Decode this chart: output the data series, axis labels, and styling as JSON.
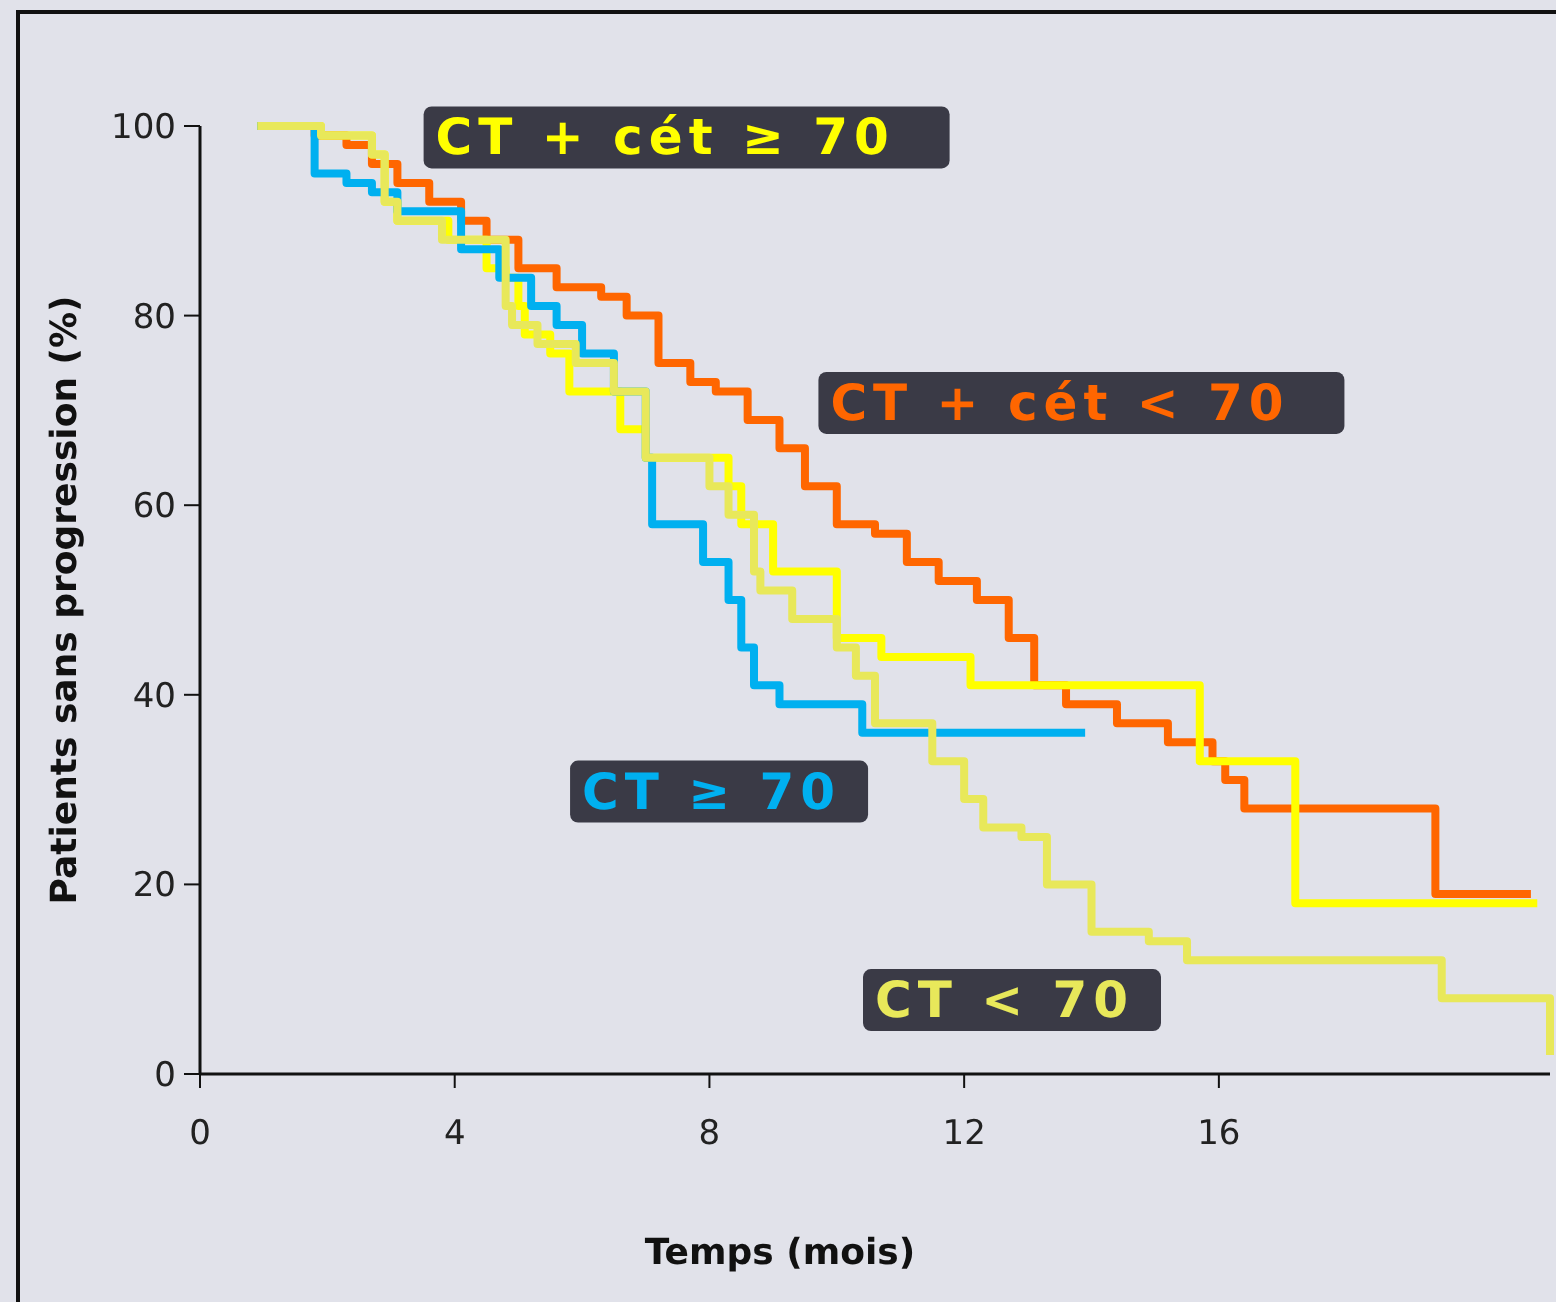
{
  "chart_data": {
    "type": "step",
    "xlabel": "Temps (mois)",
    "ylabel": "Patients sans progression (%)",
    "xlim": [
      0,
      21.2
    ],
    "ylim": [
      0,
      100
    ],
    "xticks": [
      0,
      4,
      8,
      12,
      16
    ],
    "yticks": [
      0,
      20,
      40,
      60,
      80,
      100
    ],
    "grid": false,
    "legend": false,
    "marker": "none",
    "line_style": "solid",
    "series": [
      {
        "name": "CT + cét < 70",
        "color": "#ff6600",
        "x": [
          0.9,
          1.8,
          2.3,
          2.7,
          3.1,
          3.6,
          4.1,
          4.5,
          5.0,
          5.6,
          6.3,
          6.7,
          7.2,
          7.7,
          8.1,
          8.6,
          9.1,
          9.5,
          10.0,
          10.6,
          11.1,
          11.6,
          12.2,
          12.7,
          13.1,
          13.6,
          14.4,
          15.2,
          15.9,
          16.1,
          16.4,
          19.4,
          20.9
        ],
        "values": [
          100,
          99,
          98,
          96,
          94,
          92,
          90,
          88,
          85,
          83,
          82,
          80,
          75,
          73,
          72,
          69,
          66,
          62,
          58,
          57,
          54,
          52,
          50,
          46,
          41,
          39,
          37,
          35,
          33,
          31,
          28,
          19,
          19
        ]
      },
      {
        "name": "CT + cét ≥ 70",
        "color": "#ffff00",
        "x": [
          0.9,
          1.9,
          2.7,
          2.9,
          3.1,
          3.9,
          4.5,
          4.8,
          5.0,
          5.1,
          5.5,
          5.8,
          6.6,
          7.0,
          8.3,
          8.5,
          9.0,
          10.0,
          10.7,
          12.1,
          15.7,
          17.2,
          21.0
        ],
        "values": [
          100,
          99,
          97,
          92,
          90,
          88,
          85,
          84,
          81,
          78,
          76,
          72,
          68,
          65,
          62,
          58,
          53,
          46,
          44,
          41,
          33,
          18,
          18
        ]
      },
      {
        "name": "CT ≥ 70",
        "color": "#00b0f0",
        "x": [
          0.9,
          1.8,
          2.3,
          2.7,
          3.1,
          4.1,
          4.7,
          5.2,
          5.6,
          6.0,
          6.5,
          7.0,
          7.1,
          7.9,
          8.3,
          8.5,
          8.7,
          9.1,
          10.4,
          13.9
        ],
        "values": [
          100,
          95,
          94,
          93,
          91,
          87,
          84,
          81,
          79,
          76,
          72,
          65,
          58,
          54,
          50,
          45,
          41,
          39,
          36,
          36
        ]
      },
      {
        "name": "CT < 70",
        "color": "#e8e85a",
        "x": [
          0.9,
          1.9,
          2.7,
          2.9,
          3.1,
          3.8,
          4.8,
          4.9,
          5.3,
          5.9,
          6.5,
          7.0,
          8.0,
          8.3,
          8.7,
          8.8,
          9.3,
          10.0,
          10.3,
          10.6,
          11.5,
          12.0,
          12.3,
          12.9,
          13.3,
          14.0,
          14.9,
          15.5,
          19.5,
          21.2
        ],
        "values": [
          100,
          99,
          97,
          92,
          90,
          88,
          81,
          79,
          77,
          75,
          72,
          65,
          62,
          59,
          53,
          51,
          48,
          45,
          42,
          37,
          33,
          29,
          26,
          25,
          20,
          15,
          14,
          12,
          8,
          2
        ]
      }
    ]
  }
}
